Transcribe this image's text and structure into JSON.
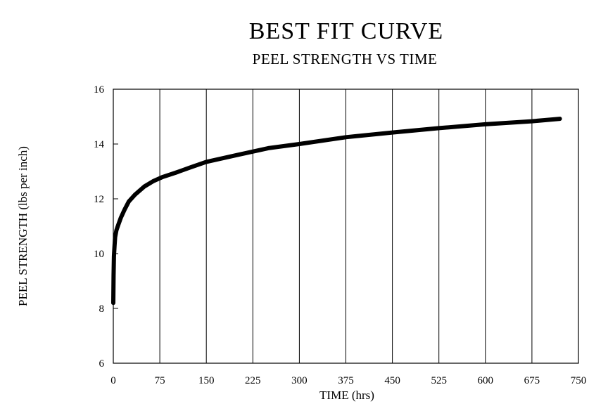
{
  "chart_data": {
    "type": "line",
    "title": "BEST FIT CURVE",
    "subtitle": "PEEL STRENGTH VS TIME",
    "xlabel": "TIME (hrs)",
    "ylabel": "PEEL STRENGTH (lbs per inch)",
    "xlim": [
      0,
      750
    ],
    "ylim": [
      6,
      16
    ],
    "x_ticks": [
      0,
      75,
      150,
      225,
      300,
      375,
      450,
      525,
      600,
      675,
      750
    ],
    "y_ticks": [
      6,
      8,
      10,
      12,
      14,
      16
    ],
    "grid": "vertical",
    "legend": "none",
    "line_color": "#000000",
    "series": [
      {
        "x": [
          0,
          0.5,
          1,
          2,
          3,
          5,
          8,
          12,
          18,
          25,
          35,
          50,
          65,
          80,
          100,
          125,
          150,
          200,
          250,
          300,
          375,
          450,
          525,
          600,
          675,
          720
        ],
        "y": [
          8.2,
          9.2,
          9.9,
          10.3,
          10.6,
          10.85,
          11.05,
          11.3,
          11.6,
          11.9,
          12.15,
          12.45,
          12.65,
          12.8,
          12.95,
          13.15,
          13.35,
          13.6,
          13.85,
          14.0,
          14.25,
          14.42,
          14.58,
          14.72,
          14.83,
          14.92
        ]
      }
    ]
  }
}
